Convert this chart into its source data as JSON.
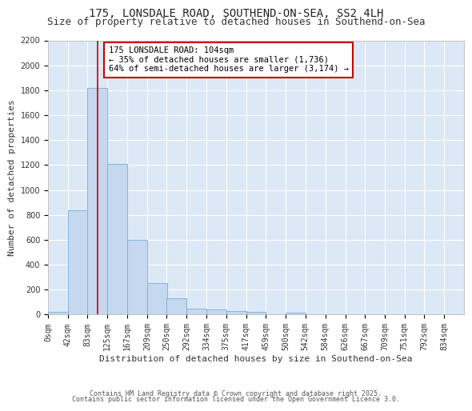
{
  "title1": "175, LONSDALE ROAD, SOUTHEND-ON-SEA, SS2 4LH",
  "title2": "Size of property relative to detached houses in Southend-on-Sea",
  "xlabel": "Distribution of detached houses by size in Southend-on-Sea",
  "ylabel": "Number of detached properties",
  "bin_edges": [
    0,
    42,
    83,
    125,
    167,
    209,
    250,
    292,
    334,
    375,
    417,
    459,
    500,
    542,
    584,
    626,
    667,
    709,
    751,
    792,
    834
  ],
  "bar_heights": [
    20,
    840,
    1820,
    1210,
    600,
    255,
    130,
    45,
    40,
    28,
    20,
    0,
    15,
    0,
    0,
    0,
    0,
    0,
    0,
    0
  ],
  "bar_color": "#c5d8ef",
  "bar_edge_color": "#7aaed4",
  "vline_x": 104,
  "vline_color": "#cc0000",
  "ylim": [
    0,
    2200
  ],
  "yticks": [
    0,
    200,
    400,
    600,
    800,
    1000,
    1200,
    1400,
    1600,
    1800,
    2000,
    2200
  ],
  "annotation_text": "175 LONSDALE ROAD: 104sqm\n← 35% of detached houses are smaller (1,736)\n64% of semi-detached houses are larger (3,174) →",
  "annotation_box_facecolor": "#ffffff",
  "annotation_box_edgecolor": "#cc0000",
  "footer1": "Contains HM Land Registry data © Crown copyright and database right 2025.",
  "footer2": "Contains public sector information licensed under the Open Government Licence 3.0.",
  "plot_bg_color": "#dce8f5",
  "fig_bg_color": "#ffffff",
  "title_fontsize": 10,
  "subtitle_fontsize": 9,
  "tick_label_fontsize": 7,
  "axis_label_fontsize": 8,
  "annotation_fontsize": 7.5,
  "footer_fontsize": 6,
  "xlim": [
    0,
    876
  ]
}
